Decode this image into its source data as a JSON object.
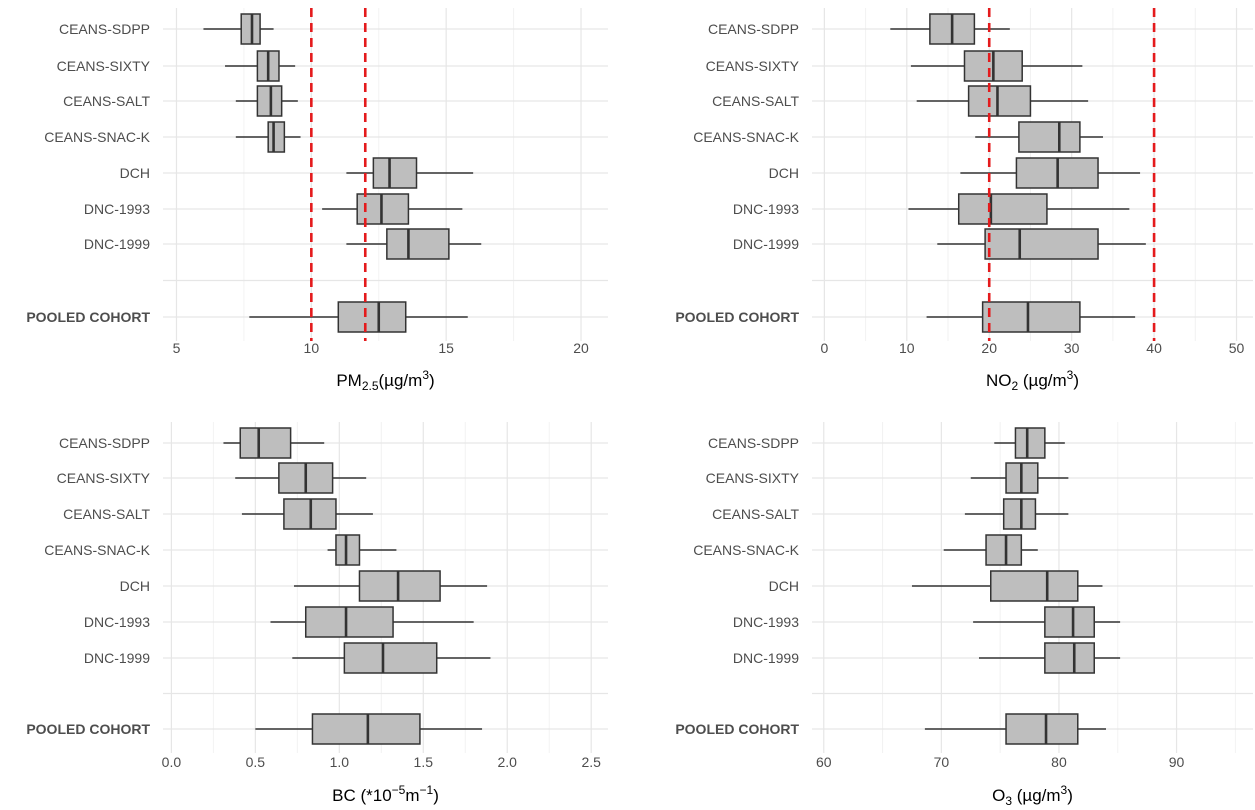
{
  "chart_data": [
    {
      "type": "boxplot",
      "orientation": "horizontal",
      "xlabel": {
        "main": "PM",
        "sub": "2.5",
        "rest": "(µg/m",
        "sup": "3",
        "end": ")"
      },
      "xlim": [
        4.5,
        21
      ],
      "xticks": [
        5,
        10,
        15,
        20
      ],
      "tick_labels": [
        "5",
        "10",
        "15",
        "20"
      ],
      "reference_lines": [
        10,
        12
      ],
      "reference_color": "#e41a1c",
      "box_fill": "#bebebe",
      "grid": true,
      "categories": [
        "CEANS-SDPP",
        "CEANS-SIXTY",
        "CEANS-SALT",
        "CEANS-SNAC-K",
        "DCH",
        "DNC-1993",
        "DNC-1999",
        "POOLED COHORT"
      ],
      "bold_categories": [
        "POOLED COHORT"
      ],
      "boxes": [
        {
          "min": 6.0,
          "q1": 7.4,
          "median": 7.8,
          "q3": 8.1,
          "max": 8.6
        },
        {
          "min": 6.8,
          "q1": 8.0,
          "median": 8.4,
          "q3": 8.8,
          "max": 9.4
        },
        {
          "min": 7.2,
          "q1": 8.0,
          "median": 8.5,
          "q3": 8.9,
          "max": 9.5
        },
        {
          "min": 7.2,
          "q1": 8.4,
          "median": 8.6,
          "q3": 9.0,
          "max": 9.6
        },
        {
          "min": 11.3,
          "q1": 12.3,
          "median": 12.9,
          "q3": 13.9,
          "max": 16.0
        },
        {
          "min": 10.4,
          "q1": 11.7,
          "median": 12.6,
          "q3": 13.6,
          "max": 15.6
        },
        {
          "min": 11.3,
          "q1": 12.8,
          "median": 13.6,
          "q3": 15.1,
          "max": 16.3
        },
        {
          "min": 7.7,
          "q1": 11.0,
          "median": 12.5,
          "q3": 13.5,
          "max": 15.8
        }
      ]
    },
    {
      "type": "boxplot",
      "orientation": "horizontal",
      "xlabel": {
        "main": "NO",
        "sub": "2",
        "rest": " (µg/m",
        "sup": "3",
        "end": ")"
      },
      "xlim": [
        -1.5,
        52
      ],
      "xticks": [
        0,
        10,
        20,
        30,
        40,
        50
      ],
      "tick_labels": [
        "0",
        "10",
        "20",
        "30",
        "40",
        "50"
      ],
      "reference_lines": [
        20,
        40
      ],
      "reference_color": "#e41a1c",
      "box_fill": "#bebebe",
      "grid": true,
      "categories": [
        "CEANS-SDPP",
        "CEANS-SIXTY",
        "CEANS-SALT",
        "CEANS-SNAC-K",
        "DCH",
        "DNC-1993",
        "DNC-1999",
        "POOLED COHORT"
      ],
      "bold_categories": [
        "POOLED COHORT"
      ],
      "boxes": [
        {
          "min": 8.0,
          "q1": 12.8,
          "median": 15.5,
          "q3": 18.2,
          "max": 22.5
        },
        {
          "min": 10.5,
          "q1": 17.0,
          "median": 20.5,
          "q3": 24.0,
          "max": 31.3
        },
        {
          "min": 11.2,
          "q1": 17.5,
          "median": 21.0,
          "q3": 25.0,
          "max": 32.0
        },
        {
          "min": 18.3,
          "q1": 23.6,
          "median": 28.5,
          "q3": 31.0,
          "max": 33.8
        },
        {
          "min": 16.5,
          "q1": 23.3,
          "median": 28.3,
          "q3": 33.2,
          "max": 38.3
        },
        {
          "min": 10.2,
          "q1": 16.3,
          "median": 20.2,
          "q3": 27.0,
          "max": 37.0
        },
        {
          "min": 13.7,
          "q1": 19.5,
          "median": 23.7,
          "q3": 33.2,
          "max": 39.0
        },
        {
          "min": 12.4,
          "q1": 19.2,
          "median": 24.7,
          "q3": 31.0,
          "max": 37.7
        }
      ]
    },
    {
      "type": "boxplot",
      "orientation": "horizontal",
      "xlabel": {
        "main": "BC (*10",
        "sup": "−5",
        "rest": "m",
        "sup2": "−1",
        "end": ")"
      },
      "xlim": [
        -0.05,
        2.6
      ],
      "xticks": [
        0.0,
        0.5,
        1.0,
        1.5,
        2.0,
        2.5
      ],
      "tick_labels": [
        "0.0",
        "0.5",
        "1.0",
        "1.5",
        "2.0",
        "2.5"
      ],
      "reference_lines": [],
      "reference_color": "#e41a1c",
      "box_fill": "#bebebe",
      "grid": true,
      "categories": [
        "CEANS-SDPP",
        "CEANS-SIXTY",
        "CEANS-SALT",
        "CEANS-SNAC-K",
        "DCH",
        "DNC-1993",
        "DNC-1999",
        "POOLED COHORT"
      ],
      "bold_categories": [
        "POOLED COHORT"
      ],
      "boxes": [
        {
          "min": 0.31,
          "q1": 0.41,
          "median": 0.52,
          "q3": 0.71,
          "max": 0.91
        },
        {
          "min": 0.38,
          "q1": 0.64,
          "median": 0.8,
          "q3": 0.96,
          "max": 1.16
        },
        {
          "min": 0.42,
          "q1": 0.67,
          "median": 0.83,
          "q3": 0.98,
          "max": 1.2
        },
        {
          "min": 0.93,
          "q1": 0.98,
          "median": 1.04,
          "q3": 1.12,
          "max": 1.34
        },
        {
          "min": 0.73,
          "q1": 1.12,
          "median": 1.35,
          "q3": 1.6,
          "max": 1.88
        },
        {
          "min": 0.59,
          "q1": 0.8,
          "median": 1.04,
          "q3": 1.32,
          "max": 1.8
        },
        {
          "min": 0.72,
          "q1": 1.03,
          "median": 1.26,
          "q3": 1.58,
          "max": 1.9
        },
        {
          "min": 0.5,
          "q1": 0.84,
          "median": 1.17,
          "q3": 1.48,
          "max": 1.85
        }
      ]
    },
    {
      "type": "boxplot",
      "orientation": "horizontal",
      "xlabel": {
        "main": "O",
        "sub": "3",
        "rest": " (µg/m",
        "sup": "3",
        "end": ")"
      },
      "xlim": [
        59,
        96.5
      ],
      "xticks": [
        60,
        70,
        80,
        90
      ],
      "tick_labels": [
        "60",
        "70",
        "80",
        "90"
      ],
      "reference_lines": [],
      "reference_color": "#e41a1c",
      "box_fill": "#bebebe",
      "grid": true,
      "categories": [
        "CEANS-SDPP",
        "CEANS-SIXTY",
        "CEANS-SALT",
        "CEANS-SNAC-K",
        "DCH",
        "DNC-1993",
        "DNC-1999",
        "POOLED COHORT"
      ],
      "bold_categories": [
        "POOLED COHORT"
      ],
      "boxes": [
        {
          "min": 74.5,
          "q1": 76.3,
          "median": 77.3,
          "q3": 78.8,
          "max": 80.5
        },
        {
          "min": 72.5,
          "q1": 75.5,
          "median": 76.8,
          "q3": 78.2,
          "max": 80.8
        },
        {
          "min": 72.0,
          "q1": 75.3,
          "median": 76.8,
          "q3": 78.0,
          "max": 80.8
        },
        {
          "min": 70.2,
          "q1": 73.8,
          "median": 75.5,
          "q3": 76.8,
          "max": 78.2
        },
        {
          "min": 67.5,
          "q1": 74.2,
          "median": 79.0,
          "q3": 81.6,
          "max": 83.7
        },
        {
          "min": 72.7,
          "q1": 78.8,
          "median": 81.2,
          "q3": 83.0,
          "max": 85.2
        },
        {
          "min": 73.2,
          "q1": 78.8,
          "median": 81.3,
          "q3": 83.0,
          "max": 85.2
        },
        {
          "min": 68.6,
          "q1": 75.5,
          "median": 78.9,
          "q3": 81.6,
          "max": 84.0
        }
      ]
    }
  ]
}
